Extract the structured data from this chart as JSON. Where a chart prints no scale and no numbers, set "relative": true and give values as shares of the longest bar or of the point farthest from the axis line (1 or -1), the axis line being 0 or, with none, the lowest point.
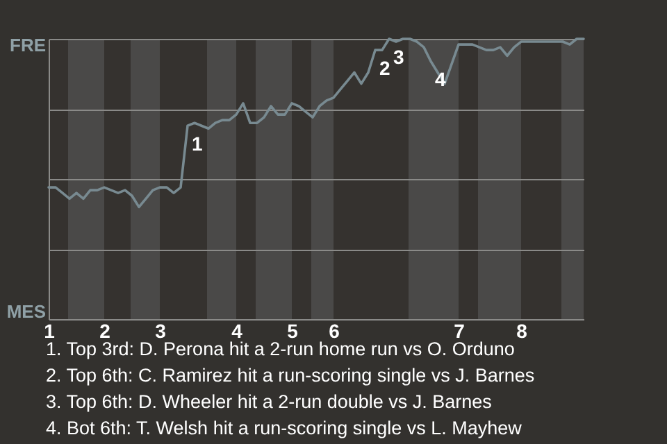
{
  "chart_data": {
    "type": "line",
    "relative": true,
    "categories": [
      "1",
      null,
      null,
      null,
      null,
      null,
      null,
      null,
      "2",
      null,
      null,
      null,
      null,
      null,
      null,
      null,
      "3",
      null,
      null,
      null,
      null,
      null,
      null,
      null,
      null,
      null,
      null,
      "4",
      null,
      null,
      null,
      null,
      null,
      null,
      null,
      "5",
      null,
      null,
      null,
      null,
      null,
      "6",
      null,
      null,
      null,
      null,
      null,
      null,
      null,
      null,
      null,
      null,
      null,
      null,
      null,
      null,
      null,
      null,
      null,
      "7",
      null,
      null,
      null,
      null,
      null,
      null,
      null,
      null,
      "8",
      null,
      null,
      null,
      null,
      null,
      null,
      null,
      null,
      null
    ],
    "series": [
      {
        "color": "#788a91",
        "values": [
          0.47,
          0.47,
          0.45,
          0.43,
          0.45,
          0.43,
          0.46,
          0.46,
          0.47,
          0.46,
          0.45,
          0.46,
          0.44,
          0.4,
          0.43,
          0.46,
          0.47,
          0.47,
          0.45,
          0.47,
          0.69,
          0.7,
          0.69,
          0.68,
          0.7,
          0.71,
          0.71,
          0.73,
          0.77,
          0.7,
          0.7,
          0.72,
          0.76,
          0.73,
          0.73,
          0.77,
          0.76,
          0.74,
          0.72,
          0.76,
          0.78,
          0.79,
          0.82,
          0.85,
          0.88,
          0.84,
          0.88,
          0.96,
          0.96,
          1,
          0.99,
          1,
          1,
          0.99,
          0.97,
          0.92,
          0.88,
          0.84,
          0.91,
          0.98,
          0.98,
          0.98,
          0.97,
          0.96,
          0.96,
          0.97,
          0.94,
          0.97,
          0.99,
          0.99,
          0.99,
          0.99,
          0.99,
          0.99,
          0.99,
          0.98,
          1,
          1
        ]
      }
    ],
    "grid": "y",
    "marker": "none",
    "line_style": "solid",
    "annotations": [
      "FRE",
      "MES",
      {
        "text": "1",
        "y": 0.69
      },
      {
        "text": "2",
        "y": 0.96
      },
      {
        "text": "3",
        "y": 1
      },
      {
        "text": "4",
        "y": 0.92
      },
      "1. Top 3rd: D. Perona hit a 2-run home run vs O. Orduno",
      "2. Top 6th: C. Ramirez hit a run-scoring single vs J. Barnes",
      "3. Top 6th: D. Wheeler hit a 2-run double vs J. Barnes",
      "4. Bot 6th: T. Welsh hit a run-scoring single vs L. Mayhew"
    ]
  }
}
